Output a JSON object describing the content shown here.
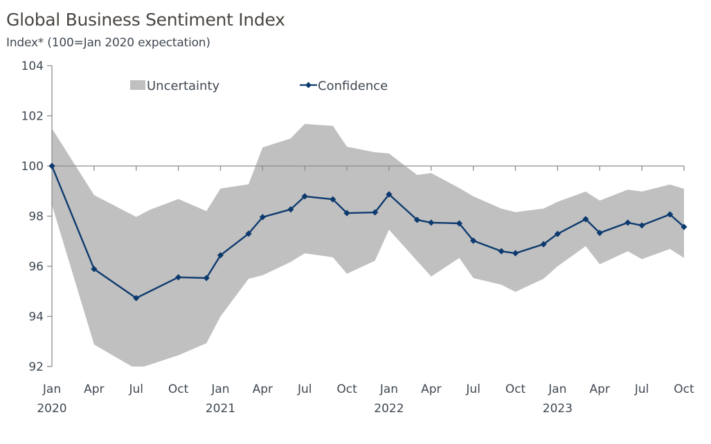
{
  "chart_data": {
    "type": "line",
    "title": "Global Business Sentiment Index",
    "subtitle": "Index* (100=Jan 2020 expectation)",
    "xlabel": "",
    "ylabel": "Index* (100=Jan 2020 expectation)",
    "ylim": [
      92,
      104
    ],
    "yticks": [
      92,
      94,
      96,
      98,
      100,
      102,
      104
    ],
    "ytick_labels": [
      "92",
      "94",
      "96",
      "98",
      "100",
      "102",
      "104"
    ],
    "x_range": [
      "Jan 2020",
      "Oct 2023"
    ],
    "xticks": [
      {
        "label": "Jan",
        "year": "2020",
        "month_index": 0
      },
      {
        "label": "Apr",
        "year": "",
        "month_index": 3
      },
      {
        "label": "Jul",
        "year": "",
        "month_index": 6
      },
      {
        "label": "Oct",
        "year": "",
        "month_index": 9
      },
      {
        "label": "Jan",
        "year": "2021",
        "month_index": 12
      },
      {
        "label": "Apr",
        "year": "",
        "month_index": 15
      },
      {
        "label": "Jul",
        "year": "",
        "month_index": 18
      },
      {
        "label": "Oct",
        "year": "",
        "month_index": 21
      },
      {
        "label": "Jan",
        "year": "2022",
        "month_index": 24
      },
      {
        "label": "Apr",
        "year": "",
        "month_index": 27
      },
      {
        "label": "Jul",
        "year": "",
        "month_index": 30
      },
      {
        "label": "Oct",
        "year": "",
        "month_index": 33
      },
      {
        "label": "Jan",
        "year": "2023",
        "month_index": 36
      },
      {
        "label": "Apr",
        "year": "",
        "month_index": 39
      },
      {
        "label": "Jul",
        "year": "",
        "month_index": 42
      },
      {
        "label": "Oct",
        "year": "",
        "month_index": 45
      }
    ],
    "reference_line": 100,
    "grid": false,
    "legend": {
      "placement": "top",
      "entries": [
        {
          "name": "Uncertainty",
          "type": "area",
          "color": "#c0c0c0"
        },
        {
          "name": "Confidence",
          "type": "line-marker",
          "color": "#0d3a6e"
        }
      ]
    },
    "series": [
      {
        "name": "Confidence",
        "type": "line",
        "marker": "diamond",
        "color": "#0d3a6e",
        "points": [
          {
            "m": 0,
            "date": "Jan 2020",
            "value": 100.0
          },
          {
            "m": 3,
            "date": "Apr 2020",
            "value": 95.89
          },
          {
            "m": 6,
            "date": "Jul 2020",
            "value": 94.73
          },
          {
            "m": 9,
            "date": "Oct 2020",
            "value": 95.56
          },
          {
            "m": 11,
            "date": "Dec 2020",
            "value": 95.53
          },
          {
            "m": 12,
            "date": "Jan 2021",
            "value": 96.44
          },
          {
            "m": 14,
            "date": "Mar 2021",
            "value": 97.3
          },
          {
            "m": 15,
            "date": "Apr 2021",
            "value": 97.96
          },
          {
            "m": 17,
            "date": "Jun 2021",
            "value": 98.27
          },
          {
            "m": 18,
            "date": "Jul 2021",
            "value": 98.79
          },
          {
            "m": 20,
            "date": "Sep 2021",
            "value": 98.67
          },
          {
            "m": 21,
            "date": "Oct 2021",
            "value": 98.12
          },
          {
            "m": 23,
            "date": "Dec 2021",
            "value": 98.15
          },
          {
            "m": 24,
            "date": "Jan 2022",
            "value": 98.87
          },
          {
            "m": 26,
            "date": "Mar 2022",
            "value": 97.85
          },
          {
            "m": 27,
            "date": "Apr 2022",
            "value": 97.74
          },
          {
            "m": 29,
            "date": "Jun 2022",
            "value": 97.71
          },
          {
            "m": 30,
            "date": "Jul 2022",
            "value": 97.02
          },
          {
            "m": 32,
            "date": "Sep 2022",
            "value": 96.6
          },
          {
            "m": 33,
            "date": "Oct 2022",
            "value": 96.52
          },
          {
            "m": 35,
            "date": "Dec 2022",
            "value": 96.88
          },
          {
            "m": 36,
            "date": "Jan 2023",
            "value": 97.29
          },
          {
            "m": 38,
            "date": "Mar 2023",
            "value": 97.88
          },
          {
            "m": 39,
            "date": "Apr 2023",
            "value": 97.33
          },
          {
            "m": 41,
            "date": "Jun 2023",
            "value": 97.74
          },
          {
            "m": 42,
            "date": "Jul 2023",
            "value": 97.63
          },
          {
            "m": 44,
            "date": "Sep 2023",
            "value": 98.07
          },
          {
            "m": 45,
            "date": "Oct 2023",
            "value": 97.57
          }
        ]
      },
      {
        "name": "Uncertainty",
        "type": "area-band",
        "color": "#c0c0c0",
        "upper": [
          {
            "m": 0,
            "value": 101.5
          },
          {
            "m": 3,
            "value": 98.84
          },
          {
            "m": 6,
            "value": 97.97
          },
          {
            "m": 7,
            "value": 98.26
          },
          {
            "m": 9,
            "value": 98.68
          },
          {
            "m": 11,
            "value": 98.2
          },
          {
            "m": 12,
            "value": 99.1
          },
          {
            "m": 14,
            "value": 99.27
          },
          {
            "m": 15,
            "value": 100.74
          },
          {
            "m": 17,
            "value": 101.1
          },
          {
            "m": 18,
            "value": 101.68
          },
          {
            "m": 20,
            "value": 101.6
          },
          {
            "m": 21,
            "value": 100.77
          },
          {
            "m": 23,
            "value": 100.55
          },
          {
            "m": 24,
            "value": 100.5
          },
          {
            "m": 26,
            "value": 99.64
          },
          {
            "m": 27,
            "value": 99.72
          },
          {
            "m": 29,
            "value": 99.12
          },
          {
            "m": 30,
            "value": 98.79
          },
          {
            "m": 32,
            "value": 98.3
          },
          {
            "m": 33,
            "value": 98.16
          },
          {
            "m": 35,
            "value": 98.3
          },
          {
            "m": 36,
            "value": 98.57
          },
          {
            "m": 38,
            "value": 98.98
          },
          {
            "m": 39,
            "value": 98.62
          },
          {
            "m": 41,
            "value": 99.06
          },
          {
            "m": 42,
            "value": 98.98
          },
          {
            "m": 44,
            "value": 99.26
          },
          {
            "m": 45,
            "value": 99.09
          }
        ],
        "lower": [
          {
            "m": 0,
            "value": 98.45
          },
          {
            "m": 3,
            "value": 92.88
          },
          {
            "m": 6,
            "value": 91.9
          },
          {
            "m": 7,
            "value": 92.08
          },
          {
            "m": 9,
            "value": 92.45
          },
          {
            "m": 11,
            "value": 92.93
          },
          {
            "m": 12,
            "value": 94.0
          },
          {
            "m": 14,
            "value": 95.5
          },
          {
            "m": 15,
            "value": 95.64
          },
          {
            "m": 17,
            "value": 96.17
          },
          {
            "m": 18,
            "value": 96.52
          },
          {
            "m": 20,
            "value": 96.36
          },
          {
            "m": 21,
            "value": 95.7
          },
          {
            "m": 23,
            "value": 96.22
          },
          {
            "m": 24,
            "value": 97.46
          },
          {
            "m": 27,
            "value": 95.59
          },
          {
            "m": 29,
            "value": 96.33
          },
          {
            "m": 30,
            "value": 95.53
          },
          {
            "m": 32,
            "value": 95.26
          },
          {
            "m": 33,
            "value": 94.98
          },
          {
            "m": 35,
            "value": 95.5
          },
          {
            "m": 36,
            "value": 96.0
          },
          {
            "m": 38,
            "value": 96.8
          },
          {
            "m": 39,
            "value": 96.08
          },
          {
            "m": 41,
            "value": 96.6
          },
          {
            "m": 42,
            "value": 96.28
          },
          {
            "m": 44,
            "value": 96.69
          },
          {
            "m": 45,
            "value": 96.33
          }
        ]
      }
    ]
  }
}
